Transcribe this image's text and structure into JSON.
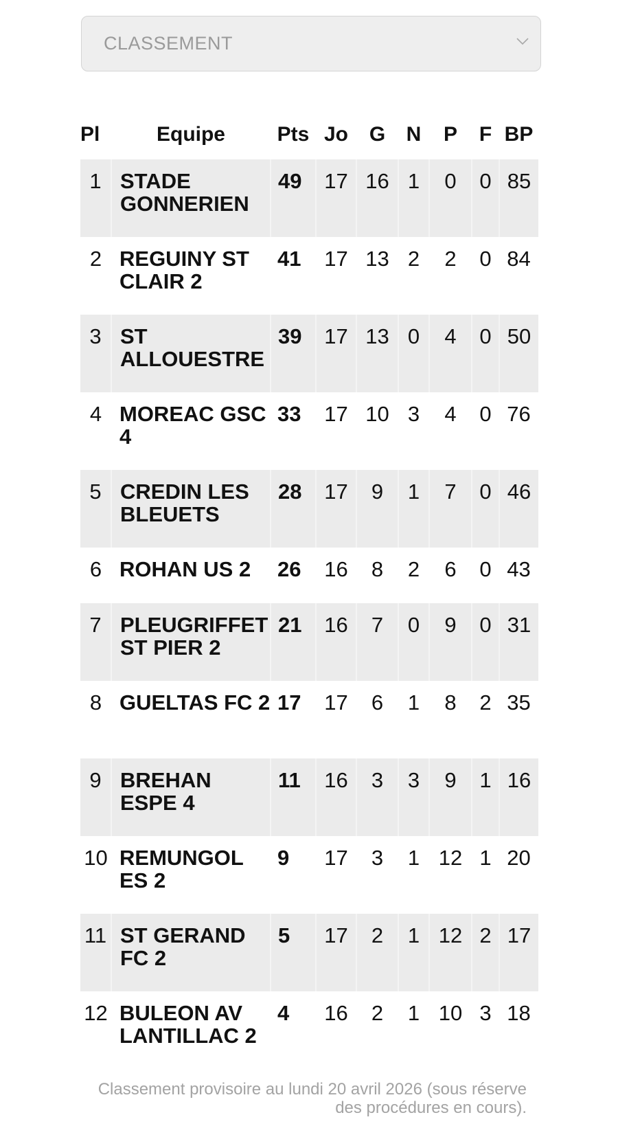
{
  "select": {
    "label": "CLASSEMENT",
    "icon": "chevron-down-icon"
  },
  "table": {
    "headers": [
      "Pl",
      "Equipe",
      "Pts",
      "Jo",
      "G",
      "N",
      "P",
      "F",
      "BP"
    ],
    "rows": [
      {
        "pl": "1",
        "team": "STADE GONNERIEN",
        "pts": "49",
        "jo": "17",
        "g": "16",
        "n": "1",
        "p": "0",
        "f": "0",
        "bp": "85"
      },
      {
        "pl": "2",
        "team": "REGUINY ST CLAIR 2",
        "pts": "41",
        "jo": "17",
        "g": "13",
        "n": "2",
        "p": "2",
        "f": "0",
        "bp": "84"
      },
      {
        "pl": "3",
        "team": "ST ALLOUESTRE",
        "pts": "39",
        "jo": "17",
        "g": "13",
        "n": "0",
        "p": "4",
        "f": "0",
        "bp": "50"
      },
      {
        "pl": "4",
        "team": "MOREAC GSC 4",
        "pts": "33",
        "jo": "17",
        "g": "10",
        "n": "3",
        "p": "4",
        "f": "0",
        "bp": "76"
      },
      {
        "pl": "5",
        "team": "CREDIN LES BLEUETS",
        "pts": "28",
        "jo": "17",
        "g": "9",
        "n": "1",
        "p": "7",
        "f": "0",
        "bp": "46"
      },
      {
        "pl": "6",
        "team": "ROHAN US 2",
        "pts": "26",
        "jo": "16",
        "g": "8",
        "n": "2",
        "p": "6",
        "f": "0",
        "bp": "43"
      },
      {
        "pl": "7",
        "team": "PLEUGRIFFET ST PIER 2",
        "pts": "21",
        "jo": "16",
        "g": "7",
        "n": "0",
        "p": "9",
        "f": "0",
        "bp": "31"
      },
      {
        "pl": "8",
        "team": "GUELTAS FC 2",
        "pts": "17",
        "jo": "17",
        "g": "6",
        "n": "1",
        "p": "8",
        "f": "2",
        "bp": "35"
      },
      {
        "pl": "9",
        "team": "BREHAN ESPE 4",
        "pts": "11",
        "jo": "16",
        "g": "3",
        "n": "3",
        "p": "9",
        "f": "1",
        "bp": "16"
      },
      {
        "pl": "10",
        "team": "REMUNGOL ES 2",
        "pts": "9",
        "jo": "17",
        "g": "3",
        "n": "1",
        "p": "12",
        "f": "1",
        "bp": "20"
      },
      {
        "pl": "11",
        "team": "ST GERAND FC 2",
        "pts": "5",
        "jo": "17",
        "g": "2",
        "n": "1",
        "p": "12",
        "f": "2",
        "bp": "17"
      },
      {
        "pl": "12",
        "team": "BULEON AV LANTILLAC 2",
        "pts": "4",
        "jo": "16",
        "g": "2",
        "n": "1",
        "p": "10",
        "f": "3",
        "bp": "18"
      }
    ]
  },
  "footer": "Classement provisoire au lundi 20 avril 2026 (sous réserve des procédures en cours).",
  "colors": {
    "row_shade": "#ebebeb",
    "footer_text": "#a3a3a3",
    "select_bg": "#eeeeee"
  }
}
